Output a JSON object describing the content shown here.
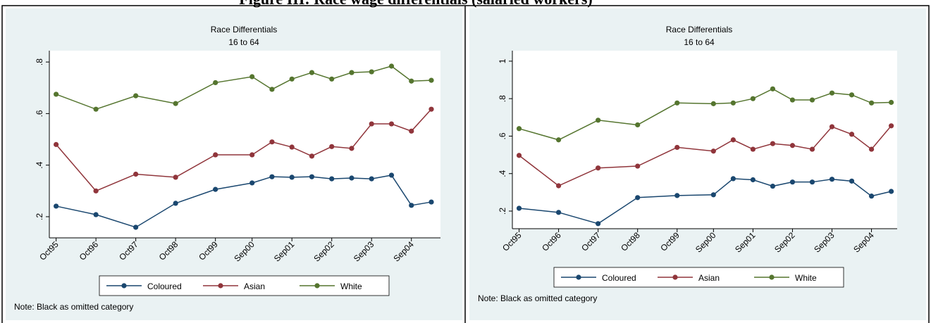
{
  "title": "Figure III: Race wage differentials (salaried workers)",
  "chart_data": [
    {
      "type": "line",
      "title": "Race Differentials",
      "subtitle": "16 to 64",
      "note": "Note: Black as omitted category",
      "x": [
        1995.75,
        1996.75,
        1997.75,
        1998.75,
        1999.75,
        2000.67,
        2001.17,
        2001.67,
        2002.17,
        2002.67,
        2003.17,
        2003.67,
        2004.17,
        2004.67,
        2005.17
      ],
      "xlim": [
        1995.58,
        2005.4
      ],
      "xticks": [
        {
          "value": 1995.75,
          "label": "Oct95"
        },
        {
          "value": 1996.75,
          "label": "Oct96"
        },
        {
          "value": 1997.75,
          "label": "Oct97"
        },
        {
          "value": 1998.75,
          "label": "Oct98"
        },
        {
          "value": 1999.75,
          "label": "Oct99"
        },
        {
          "value": 2000.67,
          "label": "Sep00"
        },
        {
          "value": 2001.67,
          "label": "Sep01"
        },
        {
          "value": 2002.67,
          "label": "Sep02"
        },
        {
          "value": 2003.67,
          "label": "Sep03"
        },
        {
          "value": 2004.67,
          "label": "Sep04"
        }
      ],
      "ylim": [
        0.118,
        0.844
      ],
      "yticks": [
        {
          "value": 0.2,
          "label": ".2"
        },
        {
          "value": 0.4,
          "label": ".4"
        },
        {
          "value": 0.6,
          "label": ".6"
        },
        {
          "value": 0.8,
          "label": ".8"
        }
      ],
      "grid": false,
      "legend": "bottom",
      "series": [
        {
          "name": "Coloured",
          "color": "#1a476f",
          "values": [
            0.241,
            0.208,
            0.159,
            0.252,
            0.306,
            0.331,
            0.355,
            0.353,
            0.355,
            0.347,
            0.35,
            0.347,
            0.361,
            0.244,
            0.257
          ]
        },
        {
          "name": "Asian",
          "color": "#90353b",
          "values": [
            0.48,
            0.3,
            0.365,
            0.353,
            0.44,
            0.44,
            0.49,
            0.47,
            0.435,
            0.472,
            0.465,
            0.56,
            0.56,
            0.532,
            0.617
          ]
        },
        {
          "name": "White",
          "color": "#55752f",
          "values": [
            0.675,
            0.617,
            0.669,
            0.639,
            0.72,
            0.743,
            0.694,
            0.734,
            0.759,
            0.734,
            0.759,
            0.762,
            0.784,
            0.726,
            0.729
          ]
        }
      ]
    },
    {
      "type": "line",
      "title": "Race Differentials",
      "subtitle": "16 to 64",
      "note": "Note: Black as omitted category",
      "x": [
        1995.75,
        1996.75,
        1997.75,
        1998.75,
        1999.75,
        2000.67,
        2001.17,
        2001.67,
        2002.17,
        2002.67,
        2003.17,
        2003.67,
        2004.17,
        2004.67,
        2005.17
      ],
      "xlim": [
        1995.58,
        2005.32
      ],
      "xticks": [
        {
          "value": 1995.75,
          "label": "Oct95"
        },
        {
          "value": 1996.75,
          "label": "Oct96"
        },
        {
          "value": 1997.75,
          "label": "Oct97"
        },
        {
          "value": 1998.75,
          "label": "Oct98"
        },
        {
          "value": 1999.75,
          "label": "Oct99"
        },
        {
          "value": 2000.67,
          "label": "Sep00"
        },
        {
          "value": 2001.67,
          "label": "Sep01"
        },
        {
          "value": 2002.67,
          "label": "Sep02"
        },
        {
          "value": 2003.67,
          "label": "Sep03"
        },
        {
          "value": 2004.67,
          "label": "Sep04"
        }
      ],
      "ylim": [
        0.106,
        1.056
      ],
      "yticks": [
        {
          "value": 0.2,
          "label": ".2"
        },
        {
          "value": 0.4,
          "label": ".4"
        },
        {
          "value": 0.6,
          "label": ".6"
        },
        {
          "value": 0.8,
          "label": ".8"
        },
        1
      ],
      "grid": false,
      "legend": "bottom",
      "series": [
        {
          "name": "Coloured",
          "color": "#1a476f",
          "values": [
            0.215,
            0.193,
            0.133,
            0.272,
            0.283,
            0.287,
            0.373,
            0.367,
            0.333,
            0.355,
            0.355,
            0.37,
            0.36,
            0.28,
            0.305
          ]
        },
        {
          "name": "Asian",
          "color": "#90353b",
          "values": [
            0.497,
            0.335,
            0.43,
            0.44,
            0.54,
            0.52,
            0.58,
            0.53,
            0.56,
            0.55,
            0.53,
            0.65,
            0.61,
            0.53,
            0.655
          ]
        },
        {
          "name": "White",
          "color": "#55752f",
          "values": [
            0.64,
            0.58,
            0.685,
            0.66,
            0.777,
            0.773,
            0.777,
            0.8,
            0.852,
            0.793,
            0.793,
            0.83,
            0.82,
            0.777,
            0.78
          ]
        }
      ]
    }
  ]
}
